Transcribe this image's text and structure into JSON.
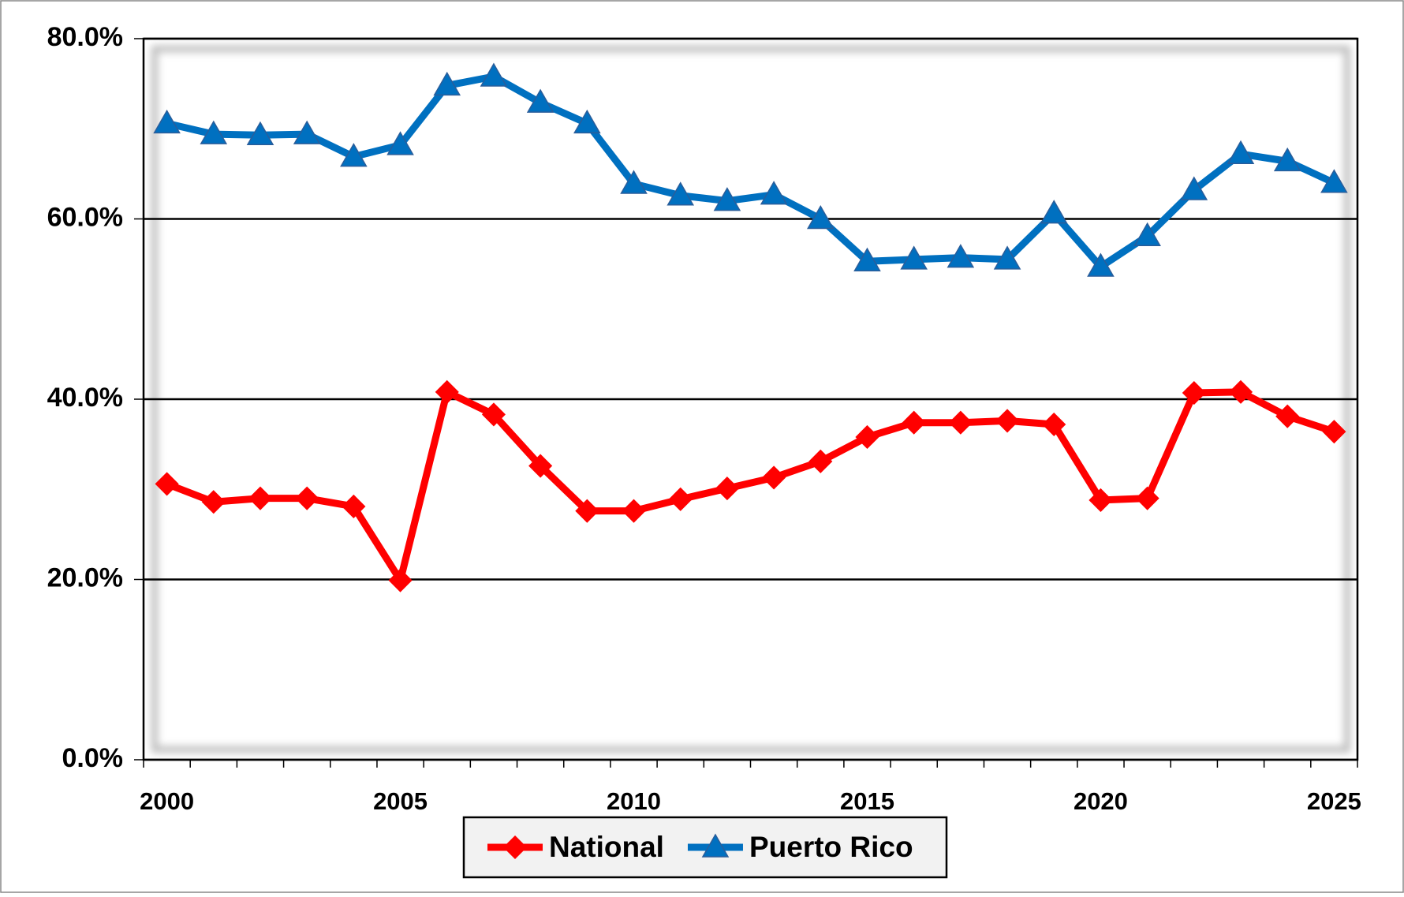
{
  "chart_data": {
    "type": "line",
    "categories": [
      "2000",
      null,
      null,
      null,
      null,
      "2005",
      null,
      null,
      null,
      null,
      "2010",
      null,
      null,
      null,
      null,
      "2015",
      null,
      null,
      null,
      null,
      "2020",
      null,
      null,
      null,
      null,
      "2025"
    ],
    "series": [
      {
        "name": "National",
        "color": "#ff0000",
        "marker": "diamond",
        "values": [
          30.6,
          28.6,
          29.0,
          29.0,
          28.1,
          19.9,
          40.8,
          38.3,
          32.6,
          27.6,
          27.6,
          28.9,
          30.1,
          31.3,
          33.1,
          35.8,
          37.4,
          37.4,
          37.6,
          37.2,
          28.8,
          29.0,
          40.7,
          40.8,
          38.1,
          36.4
        ]
      },
      {
        "name": "Puerto Rico",
        "color": "#0070c0",
        "marker": "triangle",
        "values": [
          70.6,
          69.4,
          69.3,
          69.4,
          66.9,
          68.2,
          74.8,
          75.8,
          72.9,
          70.6,
          63.9,
          62.6,
          62.0,
          62.7,
          60.0,
          55.3,
          55.5,
          55.7,
          55.5,
          60.6,
          54.7,
          58.1,
          63.2,
          67.2,
          66.4,
          64.0
        ]
      }
    ],
    "ylim": [
      0,
      80
    ],
    "yticks": [
      {
        "value": 0,
        "label": "0.0%"
      },
      {
        "value": 20,
        "label": "20.0%"
      },
      {
        "value": 40,
        "label": "40.0%"
      },
      {
        "value": 60,
        "label": "60.0%"
      },
      {
        "value": 80,
        "label": "80.0%"
      }
    ],
    "grid": true,
    "legend": "bottom"
  }
}
